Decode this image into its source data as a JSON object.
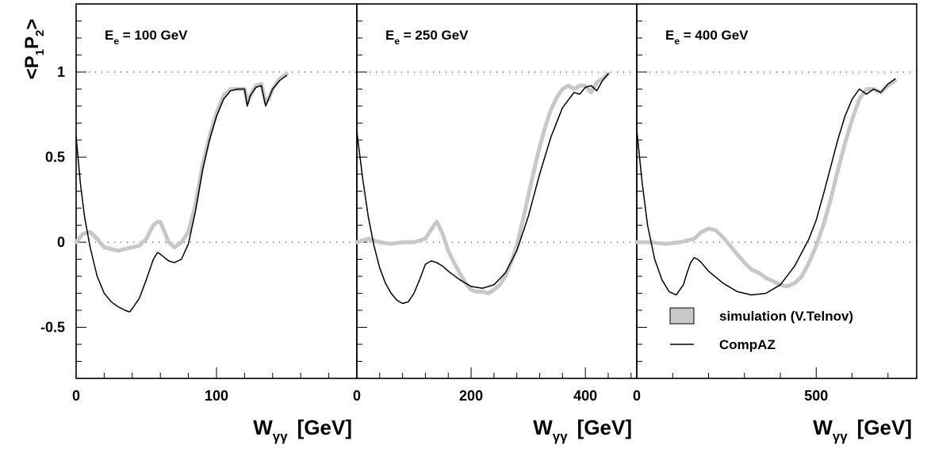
{
  "chart_data": {
    "type": "line",
    "y_axis": {
      "ylim": [
        -0.8,
        1.4
      ],
      "ticks": [
        -0.5,
        0,
        0.5,
        1
      ],
      "tick_labels": [
        "-0.5",
        "0",
        "0.5",
        "1"
      ],
      "label_parts": {
        "open": "<",
        "p": "P",
        "sub1": "1",
        "sub2": "2",
        "close": ">"
      }
    },
    "x_axis_label": {
      "main": "W",
      "sub": "γγ",
      "unit": "[GeV]"
    },
    "reference_lines": [
      0,
      1
    ],
    "legend": {
      "simulation": "simulation (V.Telnov)",
      "compaz": "CompAZ"
    },
    "colors": {
      "simulation": "#c8c8c8",
      "compaz": "#000000"
    },
    "panels": [
      {
        "energy_label": {
          "main": "E",
          "sub": "e",
          "rest": " = 100 GeV"
        },
        "xlim": [
          0,
          200
        ],
        "x_ticks": [
          0,
          100
        ],
        "x_tick_labels": [
          "0",
          "100"
        ],
        "series": [
          {
            "key": "simulation",
            "x": [
              0,
              5,
              10,
              15,
              20,
              25,
              30,
              35,
              40,
              45,
              50,
              55,
              58,
              60,
              63,
              66,
              70,
              75,
              80,
              85,
              90,
              95,
              100,
              105,
              110,
              115,
              120,
              122,
              124,
              128,
              132,
              135,
              137,
              140,
              145,
              150
            ],
            "y": [
              0.0,
              0.05,
              0.06,
              0.02,
              -0.03,
              -0.04,
              -0.05,
              -0.04,
              -0.03,
              -0.02,
              0.02,
              0.1,
              0.12,
              0.12,
              0.06,
              0.0,
              -0.03,
              0.0,
              0.06,
              0.22,
              0.45,
              0.62,
              0.76,
              0.86,
              0.9,
              0.9,
              0.9,
              0.82,
              0.86,
              0.92,
              0.93,
              0.82,
              0.84,
              0.9,
              0.96,
              0.99
            ]
          },
          {
            "key": "compaz",
            "x": [
              0,
              3,
              6,
              10,
              15,
              20,
              25,
              30,
              35,
              38,
              40,
              45,
              50,
              55,
              58,
              60,
              63,
              66,
              70,
              75,
              80,
              85,
              90,
              95,
              100,
              105,
              110,
              115,
              120,
              122,
              124,
              128,
              132,
              135,
              137,
              140,
              145,
              150
            ],
            "y": [
              0.62,
              0.35,
              0.15,
              -0.03,
              -0.2,
              -0.3,
              -0.35,
              -0.38,
              -0.4,
              -0.41,
              -0.39,
              -0.33,
              -0.22,
              -0.1,
              -0.06,
              -0.07,
              -0.09,
              -0.11,
              -0.12,
              -0.1,
              -0.01,
              0.18,
              0.42,
              0.6,
              0.74,
              0.84,
              0.89,
              0.9,
              0.9,
              0.8,
              0.86,
              0.91,
              0.92,
              0.8,
              0.84,
              0.9,
              0.95,
              0.98
            ]
          }
        ]
      },
      {
        "energy_label": {
          "main": "E",
          "sub": "e",
          "rest": " = 250 GeV"
        },
        "xlim": [
          0,
          490
        ],
        "x_ticks": [
          0,
          200,
          400
        ],
        "x_tick_labels": [
          "0",
          "200",
          "400"
        ],
        "series": [
          {
            "key": "simulation",
            "x": [
              0,
              20,
              40,
              60,
              80,
              100,
              120,
              135,
              140,
              150,
              160,
              170,
              180,
              190,
              200,
              210,
              220,
              230,
              240,
              250,
              260,
              270,
              280,
              290,
              300,
              310,
              320,
              330,
              340,
              350,
              360,
              370,
              380,
              390,
              400,
              410,
              420,
              430,
              440
            ],
            "y": [
              0.0,
              0.02,
              0.0,
              -0.01,
              0.0,
              0.0,
              0.02,
              0.1,
              0.12,
              0.05,
              -0.05,
              -0.12,
              -0.18,
              -0.24,
              -0.28,
              -0.29,
              -0.29,
              -0.3,
              -0.28,
              -0.25,
              -0.2,
              -0.12,
              -0.02,
              0.12,
              0.27,
              0.42,
              0.56,
              0.68,
              0.78,
              0.85,
              0.9,
              0.92,
              0.9,
              0.92,
              0.92,
              0.88,
              0.94,
              0.96,
              0.99
            ]
          },
          {
            "key": "compaz",
            "x": [
              0,
              10,
              20,
              30,
              40,
              50,
              60,
              70,
              80,
              90,
              100,
              110,
              120,
              130,
              140,
              150,
              160,
              180,
              200,
              220,
              240,
              260,
              280,
              300,
              320,
              340,
              360,
              380,
              390,
              400,
              410,
              420,
              430,
              440
            ],
            "y": [
              0.65,
              0.38,
              0.15,
              -0.02,
              -0.15,
              -0.24,
              -0.3,
              -0.34,
              -0.36,
              -0.35,
              -0.3,
              -0.22,
              -0.13,
              -0.11,
              -0.12,
              -0.14,
              -0.17,
              -0.22,
              -0.26,
              -0.27,
              -0.25,
              -0.18,
              -0.05,
              0.15,
              0.4,
              0.62,
              0.79,
              0.88,
              0.87,
              0.91,
              0.92,
              0.89,
              0.95,
              0.99
            ]
          }
        ]
      },
      {
        "energy_label": {
          "main": "E",
          "sub": "e",
          "rest": " = 400 GeV"
        },
        "xlim": [
          0,
          780
        ],
        "x_ticks": [
          0,
          500
        ],
        "x_tick_labels": [
          "0",
          "500"
        ],
        "series": [
          {
            "key": "simulation",
            "x": [
              0,
              40,
              80,
              120,
              160,
              180,
              200,
              220,
              240,
              260,
              280,
              300,
              320,
              340,
              360,
              380,
              400,
              420,
              440,
              460,
              480,
              500,
              520,
              540,
              560,
              580,
              600,
              620,
              640,
              660,
              680,
              700,
              720
            ],
            "y": [
              0.0,
              0.0,
              -0.01,
              0.0,
              0.02,
              0.06,
              0.08,
              0.07,
              0.03,
              -0.02,
              -0.07,
              -0.12,
              -0.16,
              -0.18,
              -0.21,
              -0.23,
              -0.25,
              -0.26,
              -0.24,
              -0.2,
              -0.12,
              -0.02,
              0.1,
              0.25,
              0.42,
              0.58,
              0.72,
              0.84,
              0.9,
              0.9,
              0.88,
              0.92,
              0.95
            ]
          },
          {
            "key": "compaz",
            "x": [
              0,
              15,
              30,
              50,
              70,
              90,
              110,
              130,
              140,
              150,
              160,
              170,
              180,
              200,
              240,
              280,
              320,
              360,
              400,
              440,
              480,
              500,
              520,
              540,
              560,
              580,
              600,
              620,
              640,
              660,
              680,
              700,
              720
            ],
            "y": [
              0.66,
              0.35,
              0.1,
              -0.1,
              -0.22,
              -0.29,
              -0.31,
              -0.25,
              -0.18,
              -0.12,
              -0.09,
              -0.1,
              -0.12,
              -0.17,
              -0.24,
              -0.29,
              -0.31,
              -0.3,
              -0.25,
              -0.14,
              0.02,
              0.13,
              0.28,
              0.44,
              0.6,
              0.74,
              0.84,
              0.9,
              0.87,
              0.9,
              0.88,
              0.93,
              0.96
            ]
          }
        ]
      }
    ]
  }
}
